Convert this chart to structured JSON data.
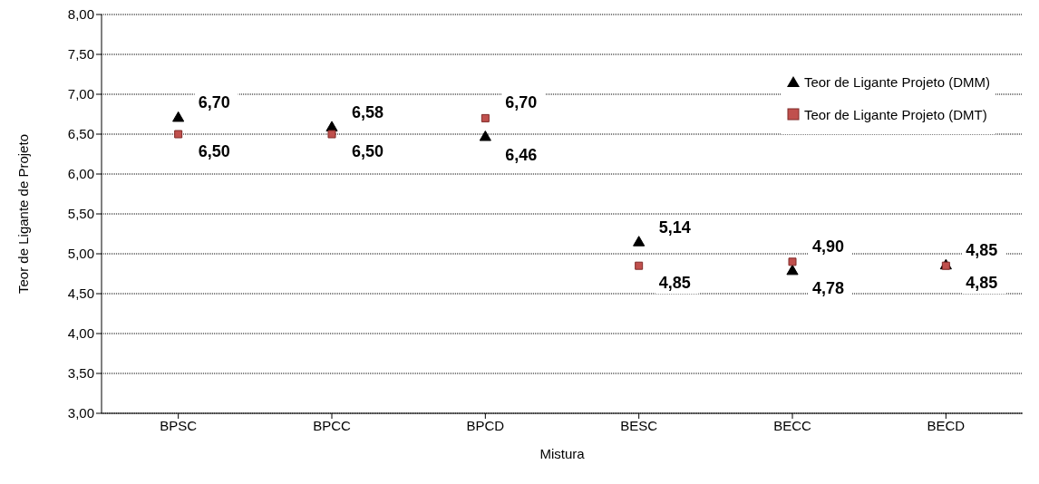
{
  "chart_data": {
    "type": "scatter",
    "xlabel": "Mistura",
    "ylabel": "Teor  de Ligante de Projeto",
    "categories": [
      "BPSC",
      "BPCC",
      "BPCD",
      "BESC",
      "BECC",
      "BECD"
    ],
    "series": [
      {
        "name": "Teor de Ligante Projeto (DMM)",
        "color": "#000000",
        "marker": "triangle",
        "values": [
          6.7,
          6.58,
          6.46,
          5.14,
          4.78,
          4.85
        ],
        "value_labels": [
          "6,70",
          "6,58",
          "6,46",
          "5,14",
          "4,78",
          "4,85"
        ]
      },
      {
        "name": "Teor de Ligante Projeto (DMT)",
        "color": "#c0504d",
        "marker": "square",
        "values": [
          6.5,
          6.5,
          6.7,
          4.85,
          4.9,
          4.85
        ],
        "value_labels": [
          "6,50",
          "6,50",
          "6,70",
          "4,85",
          "4,90",
          "4,85"
        ]
      }
    ],
    "ylim": [
      3,
      8
    ],
    "yticks": [
      {
        "value": 3,
        "label": "3,00"
      },
      {
        "value": 3.5,
        "label": "3,50"
      },
      {
        "value": 4,
        "label": "4,00"
      },
      {
        "value": 4.5,
        "label": "4,50"
      },
      {
        "value": 5,
        "label": "5,00"
      },
      {
        "value": 5.5,
        "label": "5,50"
      },
      {
        "value": 6,
        "label": "6,00"
      },
      {
        "value": 6.5,
        "label": "6,50"
      },
      {
        "value": 7,
        "label": "7,00"
      },
      {
        "value": 7.5,
        "label": "7,50"
      },
      {
        "value": 8,
        "label": "8,00"
      }
    ],
    "grid": "y",
    "legend": "top right"
  }
}
